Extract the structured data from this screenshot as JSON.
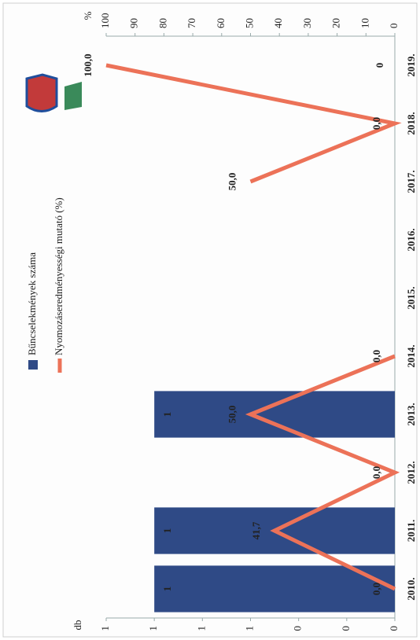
{
  "chart_data": {
    "type": "bar_line",
    "categories": [
      "2010.",
      "2011.",
      "2012.",
      "2013.",
      "2014.",
      "2015.",
      "2016.",
      "2017.",
      "2018.",
      "2019."
    ],
    "y_label": "db",
    "y2_label": "%",
    "ylim": [
      0,
      1.2
    ],
    "yticks": [
      0,
      {
        "value": 0.2,
        "label": "0"
      },
      {
        "value": 0.4,
        "label": "0"
      },
      {
        "value": 0.6,
        "label": "1"
      },
      {
        "value": 0.8,
        "label": "1"
      },
      1,
      {
        "value": 1.2,
        "label": "1"
      }
    ],
    "y2lim": [
      0,
      100
    ],
    "y2ticks": [
      0,
      10,
      20,
      30,
      40,
      50,
      60,
      70,
      80,
      90,
      100
    ],
    "series": [
      {
        "name": "Bűncselekmények száma",
        "type": "bar",
        "color": "#2f4a86",
        "values": [
          1,
          1,
          null,
          1,
          null,
          null,
          null,
          null,
          null,
          0
        ],
        "value_labels": [
          "1",
          "1",
          null,
          "1",
          null,
          null,
          null,
          null,
          null,
          "0"
        ]
      },
      {
        "name": "Nyomozáseredményességi mutató (%)",
        "type": "line",
        "axis": "y2",
        "color": "#ec7258",
        "values": [
          0,
          41.7,
          0,
          50,
          0,
          null,
          null,
          50,
          0,
          100
        ],
        "value_labels": [
          "0,0",
          "41,7",
          "0,0",
          "50,0",
          "0,0",
          null,
          null,
          "50,0",
          "0,0",
          "100,0"
        ]
      }
    ]
  }
}
